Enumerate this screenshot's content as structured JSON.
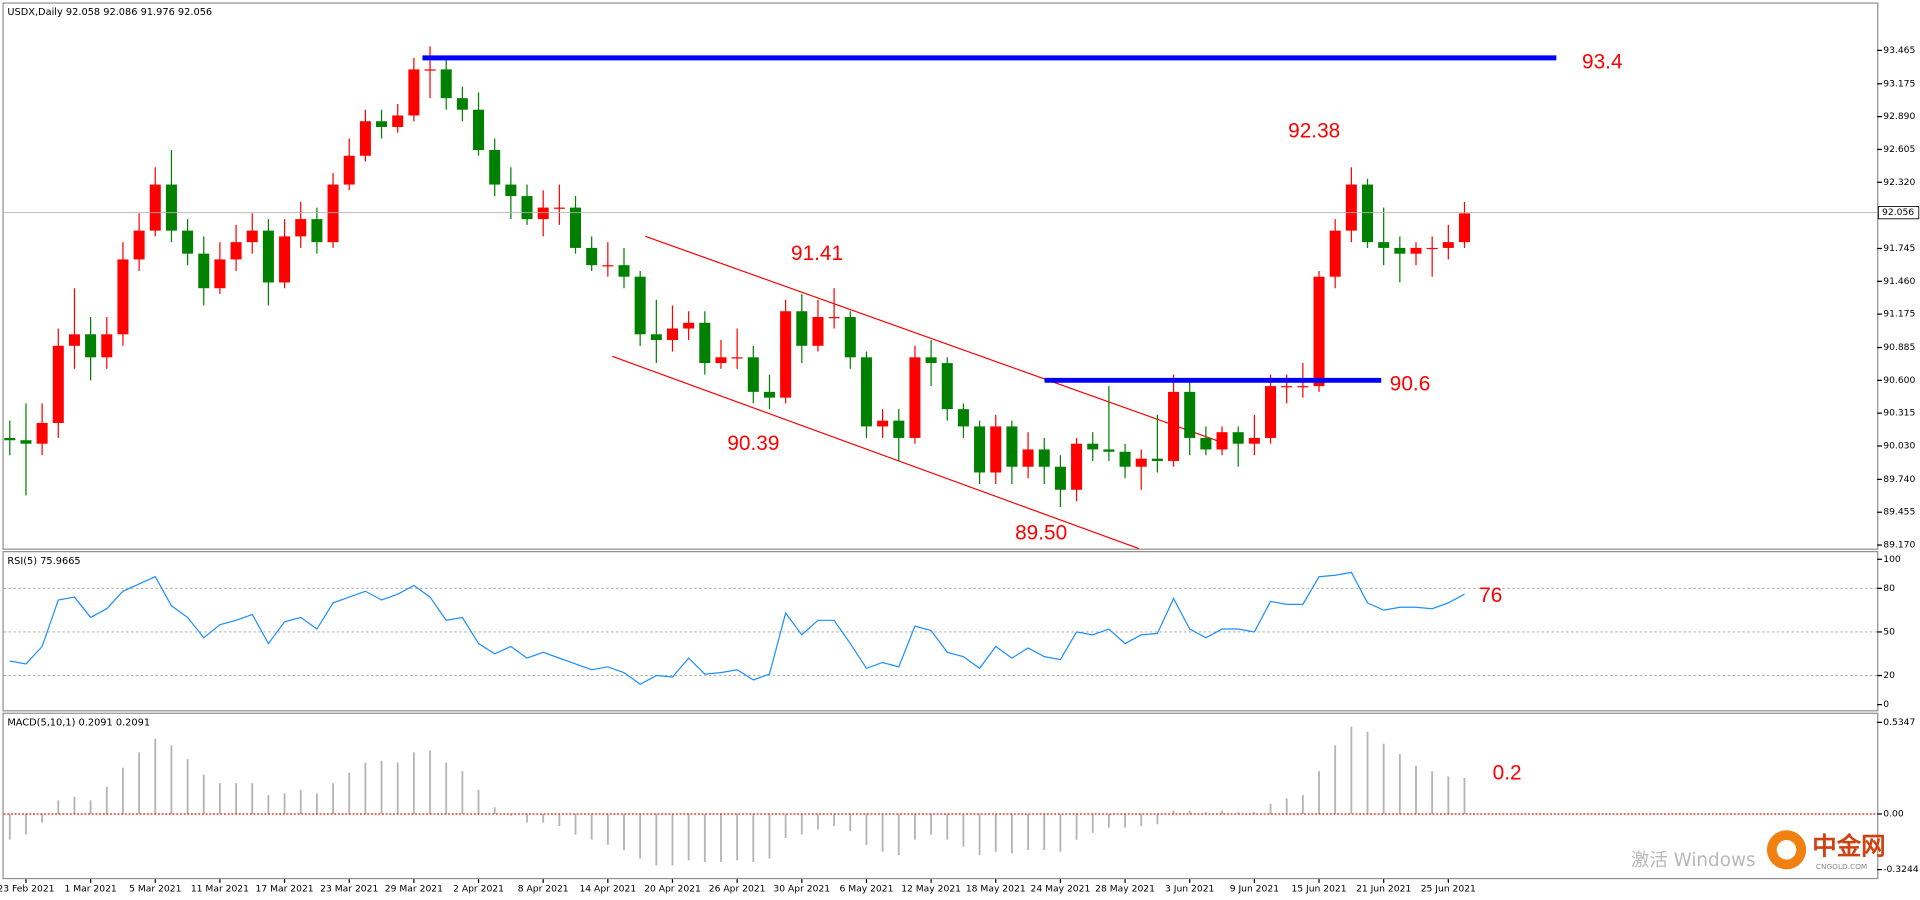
{
  "chart_data": [
    {
      "type": "candlestick",
      "title": "USDX,Daily  92.058 92.086 91.976 92.056",
      "categories": [
        null,
        "23 Feb 2021",
        null,
        null,
        null,
        "1 Mar 2021",
        null,
        null,
        null,
        "5 Mar 2021",
        null,
        null,
        null,
        "11 Mar 2021",
        null,
        null,
        null,
        "17 Mar 2021",
        null,
        null,
        null,
        "23 Mar 2021",
        null,
        null,
        null,
        "29 Mar 2021",
        null,
        null,
        null,
        "2 Apr 2021",
        null,
        null,
        null,
        "8 Apr 2021",
        null,
        null,
        null,
        "14 Apr 2021",
        null,
        null,
        null,
        "20 Apr 2021",
        null,
        null,
        null,
        "26 Apr 2021",
        null,
        null,
        null,
        "30 Apr 2021",
        null,
        null,
        null,
        "6 May 2021",
        null,
        null,
        null,
        "12 May 2021",
        null,
        null,
        null,
        "18 May 2021",
        null,
        null,
        null,
        "24 May 2021",
        null,
        null,
        null,
        "28 May 2021",
        null,
        null,
        null,
        "3 Jun 2021",
        null,
        null,
        null,
        "9 Jun 2021",
        null,
        null,
        null,
        "15 Jun 2021",
        null,
        null,
        null,
        "21 Jun 2021",
        null,
        null,
        null,
        "25 Jun 2021",
        null
      ],
      "open": [
        90.1,
        90.08,
        90.05,
        90.23,
        90.9,
        91.0,
        90.8,
        91.0,
        91.65,
        91.9,
        92.3,
        91.9,
        91.7,
        91.4,
        91.65,
        91.8,
        91.9,
        91.45,
        91.85,
        92.0,
        91.8,
        92.3,
        92.55,
        92.85,
        92.8,
        92.9,
        93.3,
        93.3,
        93.05,
        92.95,
        92.6,
        92.3,
        92.2,
        92.0,
        92.1,
        92.1,
        91.75,
        91.6,
        91.6,
        91.5,
        91.0,
        90.95,
        91.05,
        91.1,
        90.75,
        90.8,
        90.8,
        90.5,
        90.45,
        91.2,
        90.9,
        91.15,
        91.15,
        90.8,
        90.2,
        90.25,
        90.1,
        90.8,
        90.75,
        90.35,
        90.2,
        89.8,
        90.2,
        89.85,
        90.0,
        89.85,
        89.65,
        90.05,
        90.0,
        89.98,
        89.85,
        89.92,
        89.9,
        90.5,
        90.1,
        90.0,
        90.15,
        90.05,
        90.1,
        90.55,
        90.55,
        90.55,
        91.5,
        91.9,
        92.3,
        91.8,
        91.75,
        91.7,
        91.75,
        91.75,
        91.8
      ],
      "high": [
        90.25,
        90.4,
        90.4,
        91.05,
        91.4,
        91.15,
        91.15,
        91.8,
        92.05,
        92.45,
        92.6,
        92.0,
        91.85,
        91.8,
        91.95,
        92.05,
        92.0,
        92.0,
        92.15,
        92.1,
        92.4,
        92.7,
        92.95,
        92.95,
        93.0,
        93.4,
        93.5,
        93.4,
        93.15,
        93.1,
        92.7,
        92.45,
        92.3,
        92.25,
        92.3,
        92.2,
        91.85,
        91.8,
        91.75,
        91.55,
        91.3,
        91.25,
        91.2,
        91.2,
        90.95,
        91.05,
        90.9,
        90.65,
        91.3,
        91.35,
        91.3,
        91.4,
        91.2,
        90.85,
        90.35,
        90.35,
        90.9,
        90.95,
        90.8,
        90.4,
        90.25,
        90.3,
        90.25,
        90.15,
        90.1,
        89.95,
        90.1,
        90.15,
        90.55,
        90.05,
        90.0,
        90.3,
        90.65,
        90.6,
        90.2,
        90.2,
        90.2,
        90.3,
        90.65,
        90.65,
        90.75,
        91.55,
        92.0,
        92.45,
        92.35,
        92.1,
        91.85,
        91.8,
        91.85,
        91.95,
        92.15
      ],
      "low": [
        89.95,
        89.6,
        89.95,
        90.1,
        90.7,
        90.6,
        90.7,
        90.9,
        91.55,
        91.85,
        91.8,
        91.6,
        91.25,
        91.35,
        91.55,
        91.7,
        91.25,
        91.4,
        91.75,
        91.7,
        91.75,
        92.25,
        92.5,
        92.7,
        92.75,
        92.85,
        93.05,
        92.95,
        92.85,
        92.55,
        92.2,
        92.0,
        91.95,
        91.85,
        91.95,
        91.7,
        91.55,
        91.5,
        91.4,
        90.9,
        90.75,
        90.85,
        90.95,
        90.65,
        90.7,
        90.7,
        90.4,
        90.35,
        90.4,
        90.75,
        90.85,
        91.05,
        90.7,
        90.1,
        90.1,
        89.9,
        90.05,
        90.55,
        90.25,
        90.1,
        89.7,
        89.7,
        89.7,
        89.75,
        89.7,
        89.5,
        89.55,
        89.9,
        89.9,
        89.75,
        89.65,
        89.8,
        89.85,
        89.95,
        89.95,
        89.95,
        89.85,
        89.95,
        90.05,
        90.4,
        90.45,
        90.5,
        91.4,
        91.8,
        91.75,
        91.6,
        91.45,
        91.6,
        91.5,
        91.65,
        91.75
      ],
      "close": [
        90.08,
        90.05,
        90.23,
        90.9,
        91.0,
        90.8,
        91.0,
        91.65,
        91.9,
        92.3,
        91.9,
        91.7,
        91.4,
        91.65,
        91.8,
        91.9,
        91.45,
        91.85,
        92.0,
        91.8,
        92.3,
        92.55,
        92.85,
        92.8,
        92.9,
        93.3,
        93.3,
        93.05,
        92.95,
        92.6,
        92.3,
        92.2,
        92.0,
        92.1,
        92.1,
        91.75,
        91.6,
        91.6,
        91.5,
        91.0,
        90.95,
        91.05,
        91.1,
        90.75,
        90.8,
        90.8,
        90.5,
        90.45,
        91.2,
        90.9,
        91.15,
        91.15,
        90.8,
        90.2,
        90.25,
        90.1,
        90.8,
        90.75,
        90.35,
        90.2,
        89.8,
        90.2,
        89.85,
        90.0,
        89.85,
        89.65,
        90.05,
        90.0,
        89.98,
        89.85,
        89.92,
        89.9,
        90.5,
        90.1,
        90.0,
        90.15,
        90.05,
        90.1,
        90.55,
        90.55,
        90.55,
        91.5,
        91.9,
        92.3,
        91.8,
        91.75,
        91.7,
        91.75,
        91.75,
        91.8,
        92.05
      ],
      "up_color": "#ff0000",
      "down_color": "#008000",
      "ylim": [
        89.15,
        93.86
      ],
      "yticks": [
        {
          "value": 89.17,
          "label": "89.170"
        },
        89.455,
        {
          "value": 89.74,
          "label": "89.740"
        },
        {
          "value": 90.03,
          "label": "90.030"
        },
        90.315,
        {
          "value": 90.6,
          "label": "90.600"
        },
        90.885,
        91.175,
        {
          "value": 91.46,
          "label": "91.460"
        },
        91.745,
        {
          "value": 92.32,
          "label": "92.320"
        },
        92.605,
        {
          "value": 92.89,
          "label": "92.890"
        },
        93.175,
        93.465
      ],
      "last_price": 92.056,
      "levels": [
        93.4,
        90.6
      ],
      "level_color": "#0000ff",
      "annotations": [
        92.38,
        91.41,
        90.39,
        {
          "value": 89.5,
          "label": "89.50"
        }
      ]
    },
    {
      "type": "line",
      "title": "RSI(5) 75.9665",
      "color": "#1e90ff",
      "values": [
        30,
        28,
        40,
        72,
        74,
        60,
        66,
        78,
        83,
        88,
        68,
        60,
        46,
        55,
        58,
        62,
        42,
        57,
        60,
        52,
        70,
        74,
        78,
        72,
        76,
        82,
        74,
        58,
        60,
        42,
        35,
        40,
        32,
        36,
        32,
        28,
        24,
        26,
        22,
        14,
        20,
        19,
        32,
        21,
        22,
        24,
        17,
        21,
        63,
        48,
        58,
        58,
        42,
        25,
        29,
        26,
        54,
        51,
        36,
        33,
        25,
        40,
        32,
        39,
        33,
        31,
        50,
        48,
        52,
        42,
        48,
        49,
        73,
        52,
        46,
        52,
        52,
        50,
        71,
        69,
        69,
        88,
        89,
        91,
        70,
        65,
        67,
        67,
        66,
        70,
        76
      ],
      "ylim": [
        -3,
        104
      ],
      "yticks": [
        0,
        20,
        50,
        80,
        100
      ],
      "levels": [
        20,
        50,
        80
      ],
      "annotation": 76
    },
    {
      "type": "bar",
      "title": "MACD(5,10,1) 0.2091 0.2091",
      "color": "#b4b4b4",
      "zero_color": "#ff0000",
      "values": [
        -0.15,
        -0.12,
        -0.05,
        0.08,
        0.1,
        0.08,
        0.16,
        0.27,
        0.36,
        0.44,
        0.4,
        0.32,
        0.23,
        0.18,
        0.18,
        0.18,
        0.11,
        0.12,
        0.14,
        0.12,
        0.18,
        0.24,
        0.3,
        0.31,
        0.3,
        0.36,
        0.37,
        0.3,
        0.25,
        0.14,
        0.04,
        -0.01,
        -0.05,
        -0.05,
        -0.07,
        -0.12,
        -0.15,
        -0.18,
        -0.21,
        -0.26,
        -0.3,
        -0.3,
        -0.27,
        -0.28,
        -0.28,
        -0.27,
        -0.28,
        -0.26,
        -0.14,
        -0.12,
        -0.09,
        -0.07,
        -0.1,
        -0.18,
        -0.22,
        -0.24,
        -0.15,
        -0.12,
        -0.15,
        -0.19,
        -0.24,
        -0.22,
        -0.23,
        -0.21,
        -0.21,
        -0.22,
        -0.15,
        -0.11,
        -0.08,
        -0.08,
        -0.07,
        -0.06,
        0.02,
        0.02,
        0.01,
        0.02,
        0.01,
        0.01,
        0.06,
        0.09,
        0.11,
        0.25,
        0.4,
        0.51,
        0.48,
        0.41,
        0.35,
        0.28,
        0.25,
        0.22,
        0.21
      ],
      "ylim": [
        -0.366,
        0.577
      ],
      "yticks": [
        0.5347,
        {
          "value": 0,
          "label": "0.00"
        },
        -0.3244
      ],
      "annotation": 0.2
    }
  ],
  "watermark": {
    "activate": "激活 Windows",
    "brand": "中金网",
    "site": "CNGOLD.COM"
  }
}
